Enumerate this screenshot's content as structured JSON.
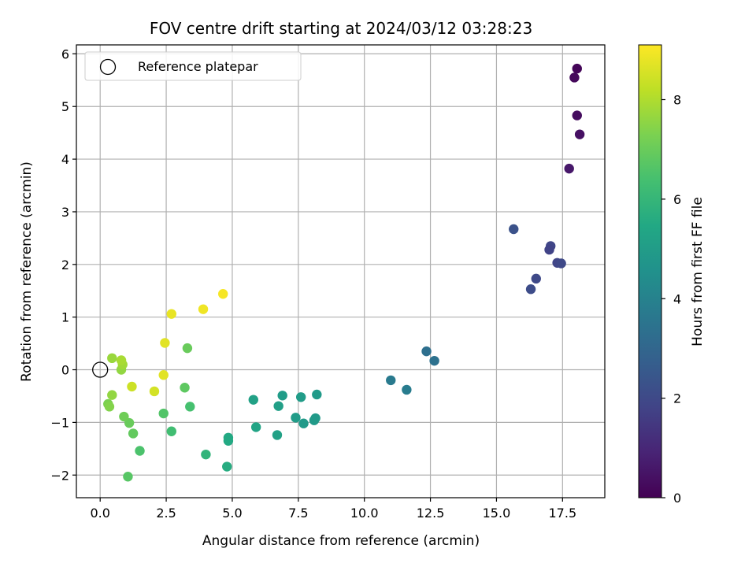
{
  "chart_data": {
    "type": "scatter",
    "title": "FOV centre drift starting at 2024/03/12 03:28:23",
    "xlabel": "Angular distance from reference (arcmin)",
    "ylabel": "Rotation from reference (arcmin)",
    "xlim": [
      -0.9,
      19.1
    ],
    "ylim": [
      -2.43,
      6.17
    ],
    "xticks": [
      0,
      2.5,
      5,
      7.5,
      10,
      12.5,
      15,
      17.5
    ],
    "xtick_labels": [
      "0.0",
      "2.5",
      "5.0",
      "7.5",
      "10.0",
      "12.5",
      "15.0",
      "17.5"
    ],
    "yticks": [
      -2,
      -1,
      0,
      1,
      2,
      3,
      4,
      5,
      6
    ],
    "ytick_labels": [
      "−2",
      "−1",
      "0",
      "1",
      "2",
      "3",
      "4",
      "5",
      "6"
    ],
    "grid": true,
    "legend": {
      "placement": "top-left",
      "entries": [
        "Reference platepar"
      ]
    },
    "reference_point": {
      "x": 0,
      "y": 0
    },
    "colorbar": {
      "label": "Hours from first FF file",
      "colormap": "viridis",
      "range": [
        0,
        9.1
      ],
      "ticks": [
        0,
        2,
        4,
        6,
        8
      ],
      "tick_labels": [
        "0",
        "2",
        "4",
        "6",
        "8"
      ]
    },
    "points": [
      {
        "x": 18.05,
        "y": 5.72,
        "h": 0.1
      },
      {
        "x": 17.95,
        "y": 5.55,
        "h": 0.2
      },
      {
        "x": 18.05,
        "y": 4.83,
        "h": 0.3
      },
      {
        "x": 18.15,
        "y": 4.47,
        "h": 0.4
      },
      {
        "x": 17.75,
        "y": 3.82,
        "h": 0.6
      },
      {
        "x": 15.65,
        "y": 2.67,
        "h": 2.3
      },
      {
        "x": 17.05,
        "y": 2.35,
        "h": 1.9
      },
      {
        "x": 17.0,
        "y": 2.28,
        "h": 1.8
      },
      {
        "x": 17.3,
        "y": 2.03,
        "h": 1.9
      },
      {
        "x": 17.45,
        "y": 2.02,
        "h": 2.0
      },
      {
        "x": 16.5,
        "y": 1.73,
        "h": 2.0
      },
      {
        "x": 16.3,
        "y": 1.53,
        "h": 2.1
      },
      {
        "x": 12.35,
        "y": 0.35,
        "h": 3.3
      },
      {
        "x": 12.65,
        "y": 0.17,
        "h": 3.4
      },
      {
        "x": 11.0,
        "y": -0.2,
        "h": 3.7
      },
      {
        "x": 11.6,
        "y": -0.38,
        "h": 3.8
      },
      {
        "x": 8.2,
        "y": -0.47,
        "h": 4.9
      },
      {
        "x": 6.9,
        "y": -0.49,
        "h": 5.0
      },
      {
        "x": 7.6,
        "y": -0.52,
        "h": 5.0
      },
      {
        "x": 5.8,
        "y": -0.57,
        "h": 5.2
      },
      {
        "x": 6.75,
        "y": -0.69,
        "h": 5.1
      },
      {
        "x": 7.4,
        "y": -0.91,
        "h": 5.0
      },
      {
        "x": 8.15,
        "y": -0.92,
        "h": 4.9
      },
      {
        "x": 8.1,
        "y": -0.96,
        "h": 4.9
      },
      {
        "x": 7.7,
        "y": -1.02,
        "h": 4.9
      },
      {
        "x": 5.9,
        "y": -1.09,
        "h": 5.3
      },
      {
        "x": 6.7,
        "y": -1.24,
        "h": 5.2
      },
      {
        "x": 4.85,
        "y": -1.29,
        "h": 5.5
      },
      {
        "x": 4.85,
        "y": -1.35,
        "h": 5.5
      },
      {
        "x": 4.8,
        "y": -1.84,
        "h": 5.6
      },
      {
        "x": 4.0,
        "y": -1.61,
        "h": 5.9
      },
      {
        "x": 2.7,
        "y": -1.17,
        "h": 6.3
      },
      {
        "x": 2.4,
        "y": -0.83,
        "h": 6.6
      },
      {
        "x": 3.4,
        "y": -0.7,
        "h": 6.4
      },
      {
        "x": 3.2,
        "y": -0.34,
        "h": 6.8
      },
      {
        "x": 3.3,
        "y": 0.41,
        "h": 7.0
      },
      {
        "x": 1.5,
        "y": -1.54,
        "h": 6.5
      },
      {
        "x": 1.25,
        "y": -1.21,
        "h": 6.9
      },
      {
        "x": 1.1,
        "y": -1.01,
        "h": 7.0
      },
      {
        "x": 0.9,
        "y": -0.89,
        "h": 7.1
      },
      {
        "x": 1.05,
        "y": -2.03,
        "h": 6.7
      },
      {
        "x": 0.3,
        "y": -0.65,
        "h": 7.3
      },
      {
        "x": 0.35,
        "y": -0.7,
        "h": 7.4
      },
      {
        "x": 0.45,
        "y": -0.48,
        "h": 7.6
      },
      {
        "x": 0.8,
        "y": 0.0,
        "h": 7.6
      },
      {
        "x": 0.85,
        "y": 0.1,
        "h": 7.8
      },
      {
        "x": 0.8,
        "y": 0.18,
        "h": 7.9
      },
      {
        "x": 0.45,
        "y": 0.22,
        "h": 7.7
      },
      {
        "x": 1.2,
        "y": -0.32,
        "h": 8.4
      },
      {
        "x": 2.05,
        "y": -0.41,
        "h": 8.5
      },
      {
        "x": 2.4,
        "y": -0.1,
        "h": 8.7
      },
      {
        "x": 2.45,
        "y": 0.51,
        "h": 8.7
      },
      {
        "x": 2.7,
        "y": 1.06,
        "h": 8.8
      },
      {
        "x": 3.9,
        "y": 1.15,
        "h": 8.9
      },
      {
        "x": 4.65,
        "y": 1.44,
        "h": 9.0
      }
    ]
  }
}
